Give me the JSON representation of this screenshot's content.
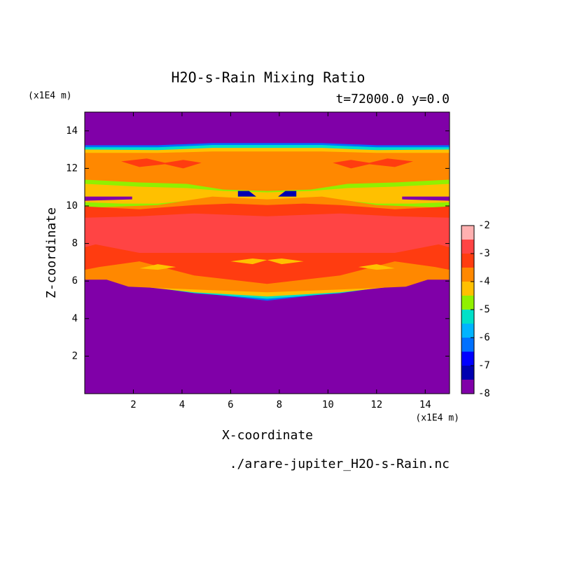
{
  "chart_data": {
    "type": "contour",
    "title": "H2O-s-Rain Mixing Ratio",
    "subtitle": "t=72000.0 y=0.0",
    "x_label": "X-coordinate",
    "y_label": "Z-coordinate",
    "x_unit": "(x1E4 m)",
    "y_unit": "(x1E4 m)",
    "footer": "./arare-jupiter_H2O-s-Rain.nc",
    "xlim": [
      0,
      15
    ],
    "xticks": [
      2,
      4,
      6,
      8,
      10,
      12,
      14
    ],
    "ylim": [
      0,
      15
    ],
    "yticks": [
      2,
      4,
      6,
      8,
      10,
      12,
      14
    ],
    "colorbar": {
      "lim": [
        -8,
        -2
      ],
      "ticks": [
        -8,
        -7,
        -6,
        -5,
        -4,
        -3,
        -2
      ],
      "levels": [
        -8,
        -7.5,
        -7,
        -6.5,
        -6,
        -5.5,
        -5,
        -4.5,
        -4,
        -3.5,
        -3,
        -2.5,
        -2
      ],
      "colors": [
        "#8000a8",
        "#0000b0",
        "#0000ff",
        "#0070ff",
        "#00b4ff",
        "#00e0c8",
        "#90f000",
        "#ffc000",
        "#ff8800",
        "#ff3c10",
        "#ff4444",
        "#ffb0b0"
      ]
    }
  }
}
